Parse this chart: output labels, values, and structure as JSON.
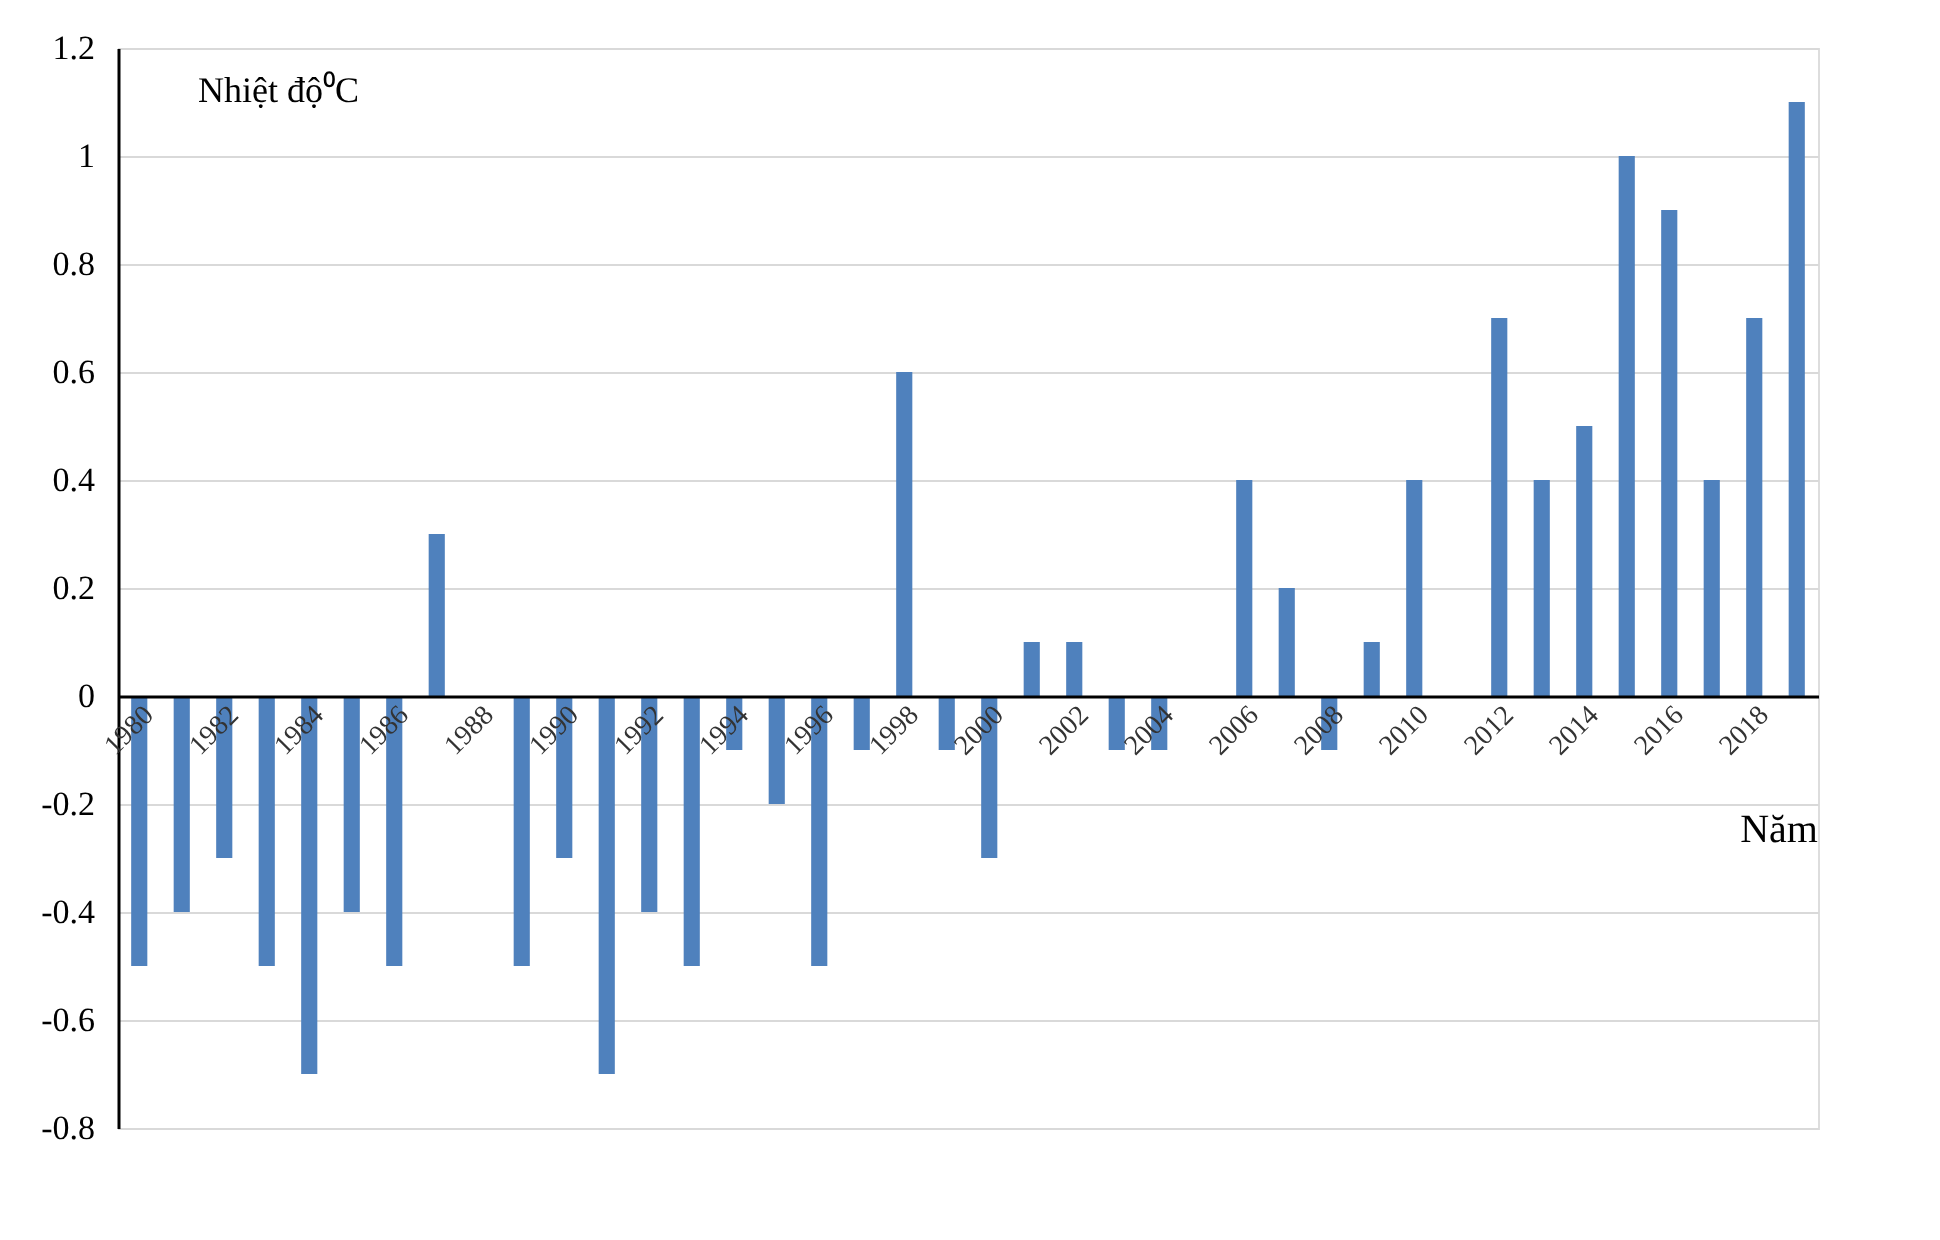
{
  "chart_data": {
    "type": "bar",
    "xlabel": "Năm",
    "ylabel": "Nhiệt độ⁰C",
    "categories": [
      "1980",
      null,
      "1982",
      null,
      "1984",
      null,
      "1986",
      null,
      "1988",
      null,
      "1990",
      null,
      "1992",
      null,
      "1994",
      null,
      "1996",
      null,
      "1998",
      null,
      "2000",
      null,
      "2002",
      null,
      "2004",
      null,
      "2006",
      null,
      "2008",
      null,
      "2010",
      null,
      "2012",
      null,
      "2014",
      null,
      "2016",
      null,
      "2018",
      null
    ],
    "values": [
      -0.5,
      -0.4,
      -0.3,
      -0.5,
      -0.7,
      -0.4,
      -0.5,
      0.3,
      0,
      -0.5,
      -0.3,
      -0.7,
      -0.4,
      -0.5,
      -0.1,
      -0.2,
      -0.5,
      -0.1,
      0.6,
      -0.1,
      -0.3,
      0.1,
      0.1,
      -0.1,
      -0.1,
      0,
      0.4,
      0.2,
      -0.1,
      0.1,
      0.4,
      0,
      0.7,
      0.4,
      0.5,
      1.0,
      0.9,
      0.4,
      0.7,
      1.1
    ],
    "color": "#4f81bd",
    "ylim": [
      -0.8,
      1.2
    ],
    "yticks": [
      -0.8,
      -0.6,
      -0.4,
      -0.2,
      0,
      0.2,
      0.4,
      0.6,
      0.8,
      1,
      1.2
    ],
    "grid": "y"
  }
}
